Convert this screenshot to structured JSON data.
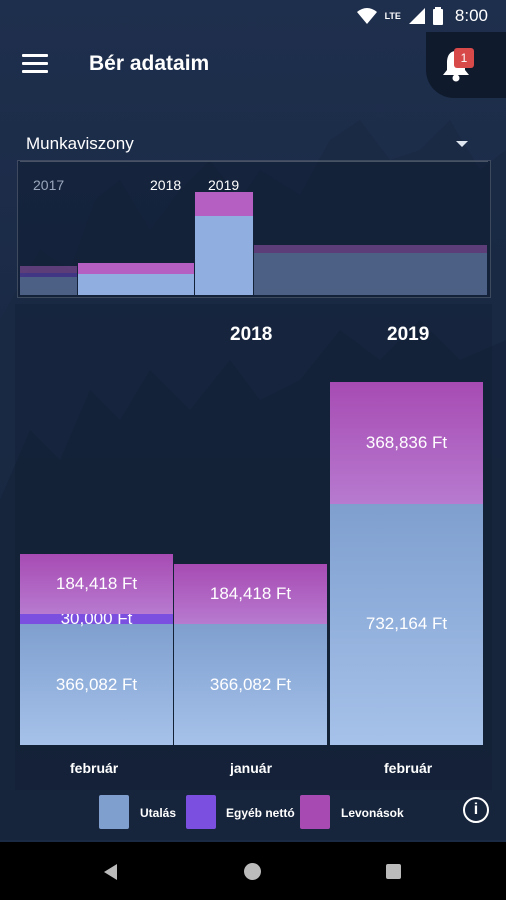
{
  "status_bar": {
    "time": "8:00",
    "network": "LTE"
  },
  "app_bar": {
    "title": "Bér adataim",
    "notification_count": "1"
  },
  "selector": {
    "label": "Munkaviszony"
  },
  "overview": {
    "years": [
      "2017",
      "2018",
      "2019"
    ]
  },
  "chart_data": {
    "type": "bar",
    "stacked": true,
    "year_headers": [
      "2018",
      "2019"
    ],
    "categories": [
      "február",
      "január",
      "február"
    ],
    "series": [
      {
        "name": "Utalás",
        "color": "#7f9fcf",
        "values": [
          366082,
          366082,
          732164
        ],
        "labels": [
          "366,082 Ft",
          "366,082 Ft",
          "732,164 Ft"
        ]
      },
      {
        "name": "Egyéb nettó",
        "color": "#7b4fe0",
        "values": [
          30000,
          0,
          0
        ],
        "labels": [
          "30,000 Ft",
          "",
          ""
        ]
      },
      {
        "name": "Levonások",
        "color": "#a74bb3",
        "values": [
          184418,
          184418,
          368836
        ],
        "labels": [
          "184,418 Ft",
          "184,418 Ft",
          "368,836 Ft"
        ]
      }
    ],
    "ylim": [
      0,
      1101000
    ]
  },
  "legend": {
    "items": [
      "Utalás",
      "Egyéb nettó",
      "Levonások"
    ]
  }
}
